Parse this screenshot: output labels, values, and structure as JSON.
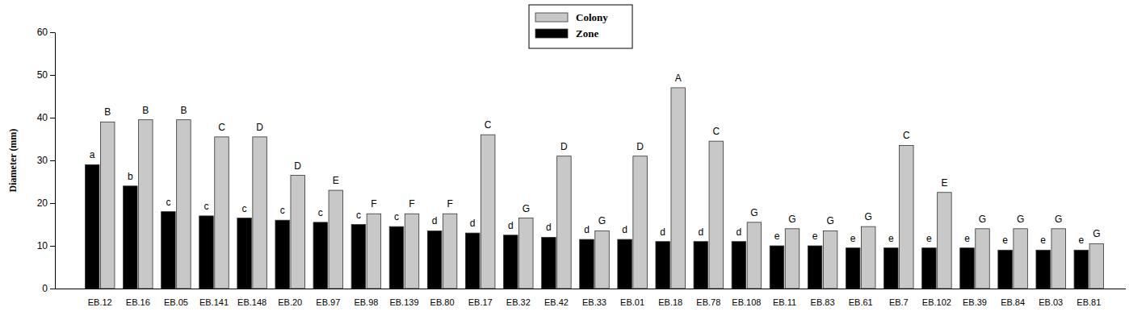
{
  "chart_data": {
    "type": "bar",
    "y_label": "Diameter (mm)",
    "categories": [
      "EB.12",
      "EB.16",
      "EB.05",
      "EB.141",
      "EB.148",
      "EB.20",
      "EB.97",
      "EB.98",
      "EB.139",
      "EB.80",
      "EB.17",
      "EB.32",
      "EB.42",
      "EB.33",
      "EB.01",
      "EB.18",
      "EB.78",
      "EB.108",
      "EB.11",
      "EB.83",
      "EB.61",
      "EB.7",
      "EB.102",
      "EB.39",
      "EB.84",
      "EB.03",
      "EB.81"
    ],
    "series": [
      {
        "name": "Zone",
        "color": "#000000",
        "values": [
          29,
          24,
          18,
          17,
          16.5,
          16,
          15.5,
          15,
          14.5,
          13.5,
          13,
          12.5,
          12,
          11.5,
          11.5,
          11,
          11,
          11,
          10,
          10,
          9.5,
          9.5,
          9.5,
          9.5,
          9,
          9,
          9
        ],
        "letters": [
          "a",
          "b",
          "c",
          "c",
          "c",
          "c",
          "c",
          "c",
          "c",
          "d",
          "d",
          "d",
          "d",
          "d",
          "d",
          "d",
          "d",
          "d",
          "e",
          "e",
          "e",
          "e",
          "e",
          "e",
          "e",
          "e",
          "e"
        ]
      },
      {
        "name": "Colony",
        "color": "#c8c8c8",
        "values": [
          39,
          39.5,
          39.5,
          35.5,
          35.5,
          26.5,
          23,
          17.5,
          17.5,
          17.5,
          36,
          16.5,
          31,
          13.5,
          31,
          47,
          34.5,
          15.5,
          14,
          13.5,
          14.5,
          33.5,
          22.5,
          14,
          14,
          14,
          10.5
        ],
        "letters": [
          "B",
          "B",
          "B",
          "C",
          "D",
          "D",
          "E",
          "F",
          "F",
          "F",
          "C",
          "G",
          "D",
          "G",
          "D",
          "A",
          "C",
          "G",
          "G",
          "G",
          "G",
          "C",
          "E",
          "G",
          "G",
          "G",
          "G"
        ]
      }
    ],
    "ylim": [
      0,
      60
    ],
    "yticks": [
      0,
      10,
      20,
      30,
      40,
      50,
      60
    ],
    "grid": false,
    "legend": "top"
  }
}
